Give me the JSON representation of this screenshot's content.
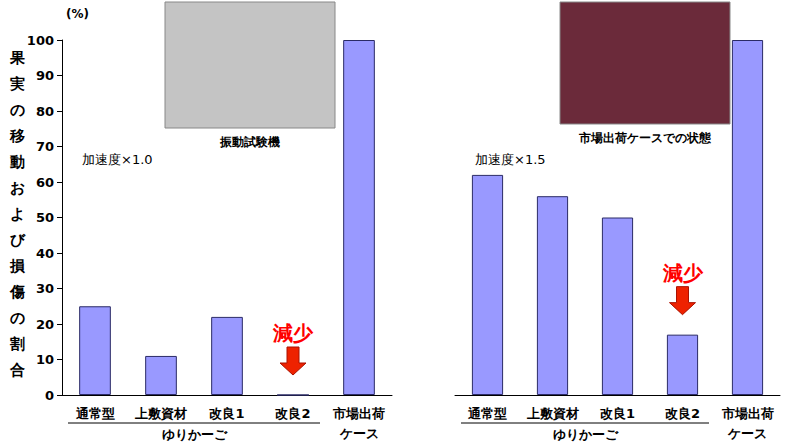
{
  "chart_data": [
    {
      "type": "bar",
      "title": "加速度×1.0",
      "ylabel": "果実の移動および損傷の割合",
      "yunit": "(%)",
      "categories": [
        "通常型",
        "上敷資材",
        "改良1",
        "改良2",
        "市場出荷ケース"
      ],
      "values": [
        25,
        11,
        22,
        0,
        100
      ],
      "color": "#9999ff",
      "ylim": [
        0,
        100
      ],
      "yticks": [
        0,
        10,
        20,
        30,
        40,
        50,
        60,
        70,
        80,
        90,
        100
      ],
      "grid": false,
      "tick_labels": true,
      "groups": [
        {
          "label": "ゆりかーご",
          "categories": [
            "通常型",
            "上敷資材",
            "改良1",
            "改良2"
          ]
        }
      ],
      "annotations": [
        {
          "text": "減少",
          "category": "改良2"
        }
      ],
      "photo_caption": "振動試験機"
    },
    {
      "type": "bar",
      "title": "加速度×1.5",
      "categories": [
        "通常型",
        "上敷資材",
        "改良1",
        "改良2",
        "市場出荷ケース"
      ],
      "values": [
        62,
        56,
        50,
        17,
        100
      ],
      "color": "#9999ff",
      "ylim": [
        0,
        100
      ],
      "yticks": [
        0,
        10,
        20,
        30,
        40,
        50,
        60,
        70,
        80,
        90,
        100
      ],
      "grid": false,
      "tick_labels": "x",
      "groups": [
        {
          "label": "ゆりかーご",
          "categories": [
            "通常型",
            "上敷資材",
            "改良1",
            "改良2"
          ]
        }
      ],
      "annotations": [
        {
          "text": "減少",
          "category": "改良2"
        }
      ],
      "photo_caption": "市場出荷ケースでの状態"
    }
  ]
}
